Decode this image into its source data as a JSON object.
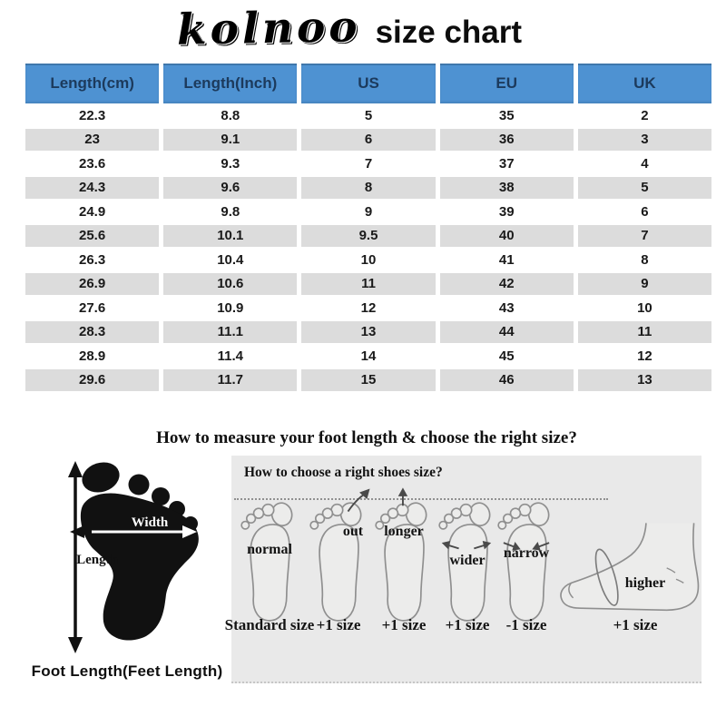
{
  "page_title": {
    "brand": "kolnoo",
    "suffix": "size chart"
  },
  "chart_data": {
    "type": "table",
    "title": "kolnoo size chart",
    "columns": [
      "Length(cm)",
      "Length(Inch)",
      "US",
      "EU",
      "UK"
    ],
    "rows": [
      [
        "22.3",
        "8.8",
        "5",
        "35",
        "2"
      ],
      [
        "23",
        "9.1",
        "6",
        "36",
        "3"
      ],
      [
        "23.6",
        "9.3",
        "7",
        "37",
        "4"
      ],
      [
        "24.3",
        "9.6",
        "8",
        "38",
        "5"
      ],
      [
        "24.9",
        "9.8",
        "9",
        "39",
        "6"
      ],
      [
        "25.6",
        "10.1",
        "9.5",
        "40",
        "7"
      ],
      [
        "26.3",
        "10.4",
        "10",
        "41",
        "8"
      ],
      [
        "26.9",
        "10.6",
        "11",
        "42",
        "9"
      ],
      [
        "27.6",
        "10.9",
        "12",
        "43",
        "10"
      ],
      [
        "28.3",
        "11.1",
        "13",
        "44",
        "11"
      ],
      [
        "28.9",
        "11.4",
        "14",
        "45",
        "12"
      ],
      [
        "29.6",
        "11.7",
        "15",
        "46",
        "13"
      ]
    ]
  },
  "measure": {
    "heading": "How to measure your foot length & choose the right size?",
    "foot_diagram": {
      "width_label": "Width",
      "length_label": "Length",
      "caption": "Foot Length(Feet Length)"
    },
    "panel": {
      "title": "How to choose a right shoes size?",
      "items": [
        {
          "label": "normal",
          "size": "Standard size"
        },
        {
          "label": "out",
          "size": "+1 size"
        },
        {
          "label": "longer",
          "size": "+1 size"
        },
        {
          "label": "wider",
          "size": "+1 size"
        },
        {
          "label": "narrow",
          "size": "-1 size"
        },
        {
          "label": "higher",
          "size": "+1 size"
        }
      ]
    }
  },
  "colors": {
    "header_blue": "#4E92D2",
    "header_text": "#1c3a5c",
    "row_alt": "#dcdcdc",
    "panel_bg": "#e9e9e9",
    "sketch_stroke": "#8f8f8f"
  }
}
